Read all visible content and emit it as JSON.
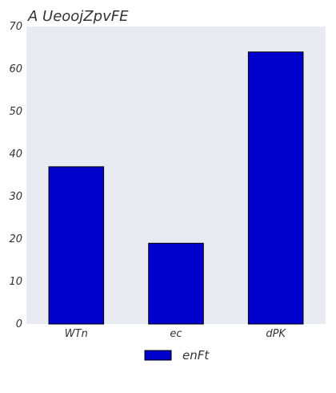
{
  "chart_data": {
    "type": "bar",
    "title": "A UeoojZpvFE",
    "categories": [
      "WTn",
      "ec",
      "dPK"
    ],
    "series": [
      {
        "name": "enFt",
        "values": [
          37,
          19,
          64
        ]
      }
    ],
    "ylim": [
      0,
      70
    ],
    "yticks": [
      0,
      10,
      20,
      30,
      40,
      50,
      60,
      70
    ],
    "xlabel": "",
    "ylabel": "",
    "grid": false,
    "legend_position": "bottom-center",
    "colors": {
      "bar_fill": "#0000cd",
      "bar_stroke": "#000000",
      "plot_background": "#eaeaf2",
      "text": "#333333"
    }
  }
}
